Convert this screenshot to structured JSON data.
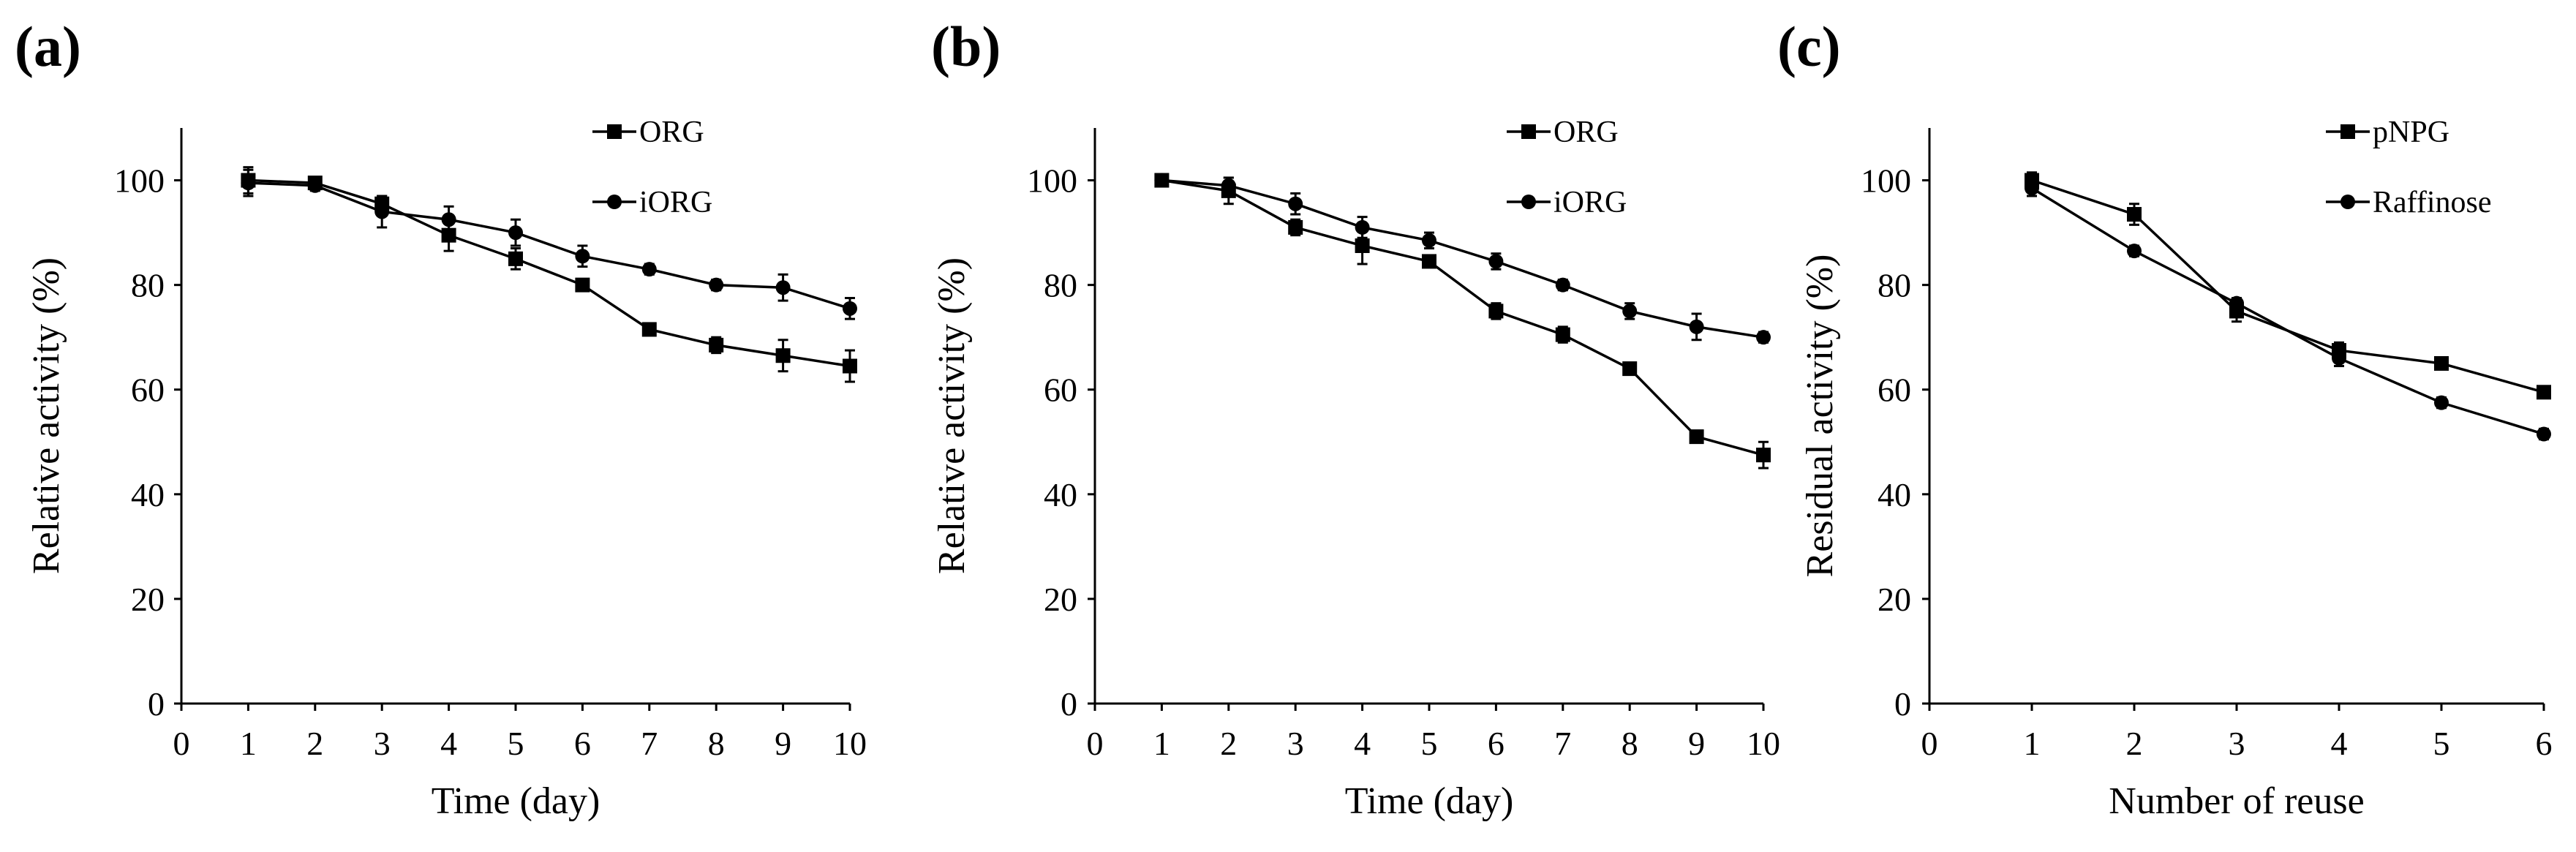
{
  "chart_data": [
    {
      "type": "line",
      "panel_label": "(a)",
      "xlabel": "Time (day)",
      "ylabel": "Relative activity (%)",
      "xlim": [
        0,
        10
      ],
      "ylim": [
        0,
        110
      ],
      "xticks": [
        0,
        1,
        2,
        3,
        4,
        5,
        6,
        7,
        8,
        9,
        10
      ],
      "yticks": [
        0,
        20,
        40,
        60,
        80,
        100
      ],
      "legend_position": "top-right",
      "x": [
        1,
        2,
        3,
        4,
        5,
        6,
        7,
        8,
        9,
        10
      ],
      "series": [
        {
          "name": "ORG",
          "marker": "square",
          "values": [
            100,
            99.5,
            95.5,
            89.5,
            85,
            80,
            71.5,
            68.5,
            66.5,
            64.5
          ],
          "errors": [
            2.5,
            1,
            1.5,
            3,
            2,
            1,
            1,
            1.5,
            3,
            3
          ]
        },
        {
          "name": "iORG",
          "marker": "circle",
          "values": [
            99.5,
            99,
            94,
            92.5,
            90,
            85.5,
            83,
            80,
            79.5,
            75.5
          ],
          "errors": [
            2.5,
            1,
            3,
            2.5,
            2.5,
            2,
            1,
            1,
            2.5,
            2
          ]
        }
      ]
    },
    {
      "type": "line",
      "panel_label": "(b)",
      "xlabel": "Time (day)",
      "ylabel": "Relative activity (%)",
      "xlim": [
        0,
        10
      ],
      "ylim": [
        0,
        110
      ],
      "xticks": [
        0,
        1,
        2,
        3,
        4,
        5,
        6,
        7,
        8,
        9,
        10
      ],
      "yticks": [
        0,
        20,
        40,
        60,
        80,
        100
      ],
      "legend_position": "top-right",
      "x": [
        1,
        2,
        3,
        4,
        5,
        6,
        7,
        8,
        9,
        10
      ],
      "series": [
        {
          "name": "ORG",
          "marker": "square",
          "values": [
            100,
            98,
            91,
            87.5,
            84.5,
            75,
            70.5,
            64,
            51,
            47.5
          ],
          "errors": [
            1,
            2.5,
            1.5,
            3.5,
            1,
            1.5,
            1.5,
            1,
            1,
            2.5
          ]
        },
        {
          "name": "iORG",
          "marker": "circle",
          "values": [
            100,
            99,
            95.5,
            91,
            88.5,
            84.5,
            80,
            75,
            72,
            70
          ],
          "errors": [
            1,
            1.5,
            2,
            2,
            1.5,
            1.5,
            1,
            1.5,
            2.5,
            1
          ]
        }
      ]
    },
    {
      "type": "line",
      "panel_label": "(c)",
      "xlabel": "Number of reuse",
      "ylabel": "Residual activity (%)",
      "xlim": [
        0,
        6
      ],
      "ylim": [
        0,
        110
      ],
      "xticks": [
        0,
        1,
        2,
        3,
        4,
        5,
        6
      ],
      "yticks": [
        0,
        20,
        40,
        60,
        80,
        100
      ],
      "legend_position": "top-right",
      "x": [
        1,
        2,
        3,
        4,
        5,
        6
      ],
      "series": [
        {
          "name": "pNPG",
          "marker": "square",
          "values": [
            100,
            93.5,
            75,
            67.5,
            65,
            59.5
          ],
          "errors": [
            1.5,
            2,
            2,
            1.5,
            1,
            1
          ]
        },
        {
          "name": "Raffinose",
          "marker": "circle",
          "values": [
            98.5,
            86.5,
            76.5,
            66,
            57.5,
            51.5
          ],
          "errors": [
            1.5,
            1,
            1,
            1.5,
            1,
            1
          ]
        }
      ]
    }
  ]
}
